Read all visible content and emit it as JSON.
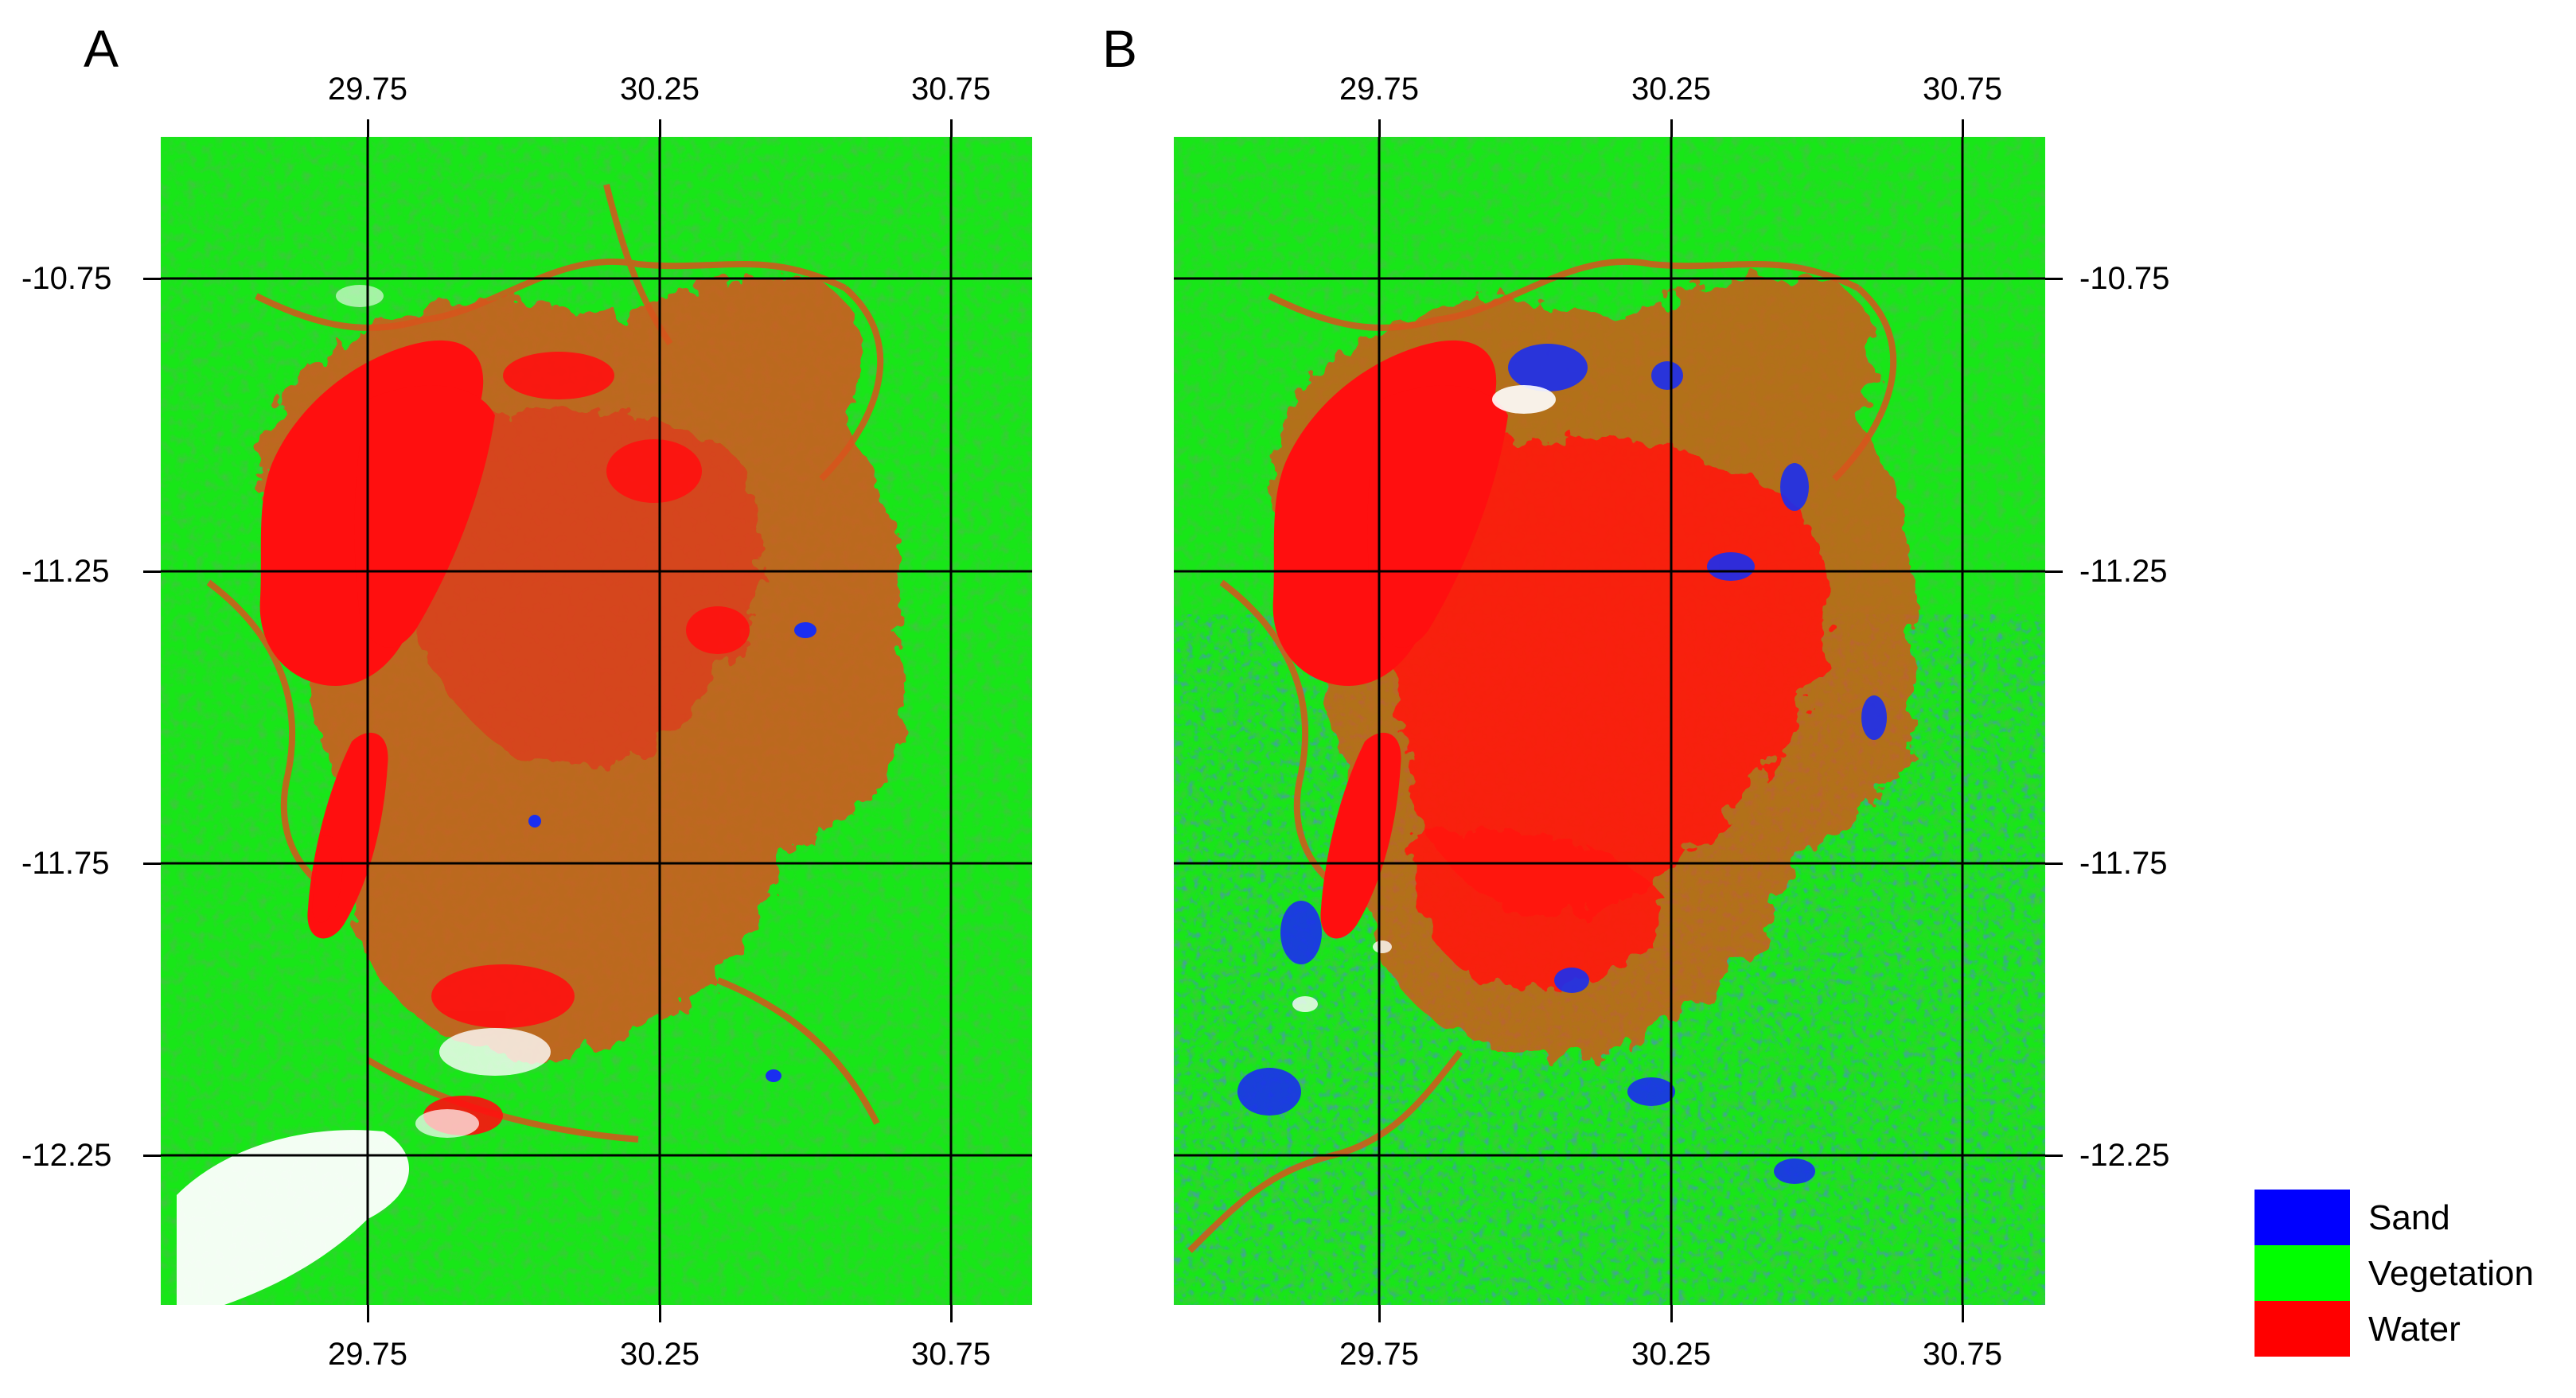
{
  "panels": [
    {
      "id": "A",
      "label": "A",
      "x_ticks": [
        "29.75",
        "30.25",
        "30.75"
      ],
      "y_ticks": [
        "-10.75",
        "-11.25",
        "-11.75",
        "-12.25"
      ],
      "y_tick_side": "left"
    },
    {
      "id": "B",
      "label": "B",
      "x_ticks": [
        "29.75",
        "30.25",
        "30.75"
      ],
      "y_ticks": [
        "-10.75",
        "-11.25",
        "-11.75",
        "-12.25"
      ],
      "y_tick_side": "right"
    }
  ],
  "legend": {
    "items": [
      {
        "label": "Sand",
        "color": "#0000ff"
      },
      {
        "label": "Vegetation",
        "color": "#00ff00"
      },
      {
        "label": "Water",
        "color": "#ff0000"
      }
    ]
  },
  "colors": {
    "vegetation": "#18e618",
    "vegetation_dark": "#2a9a1a",
    "water": "#ff0f0f",
    "water_mixed": "#d8541c",
    "sand": "#1a2ef0",
    "cloud": "#ffffff",
    "grid": "#000000"
  }
}
